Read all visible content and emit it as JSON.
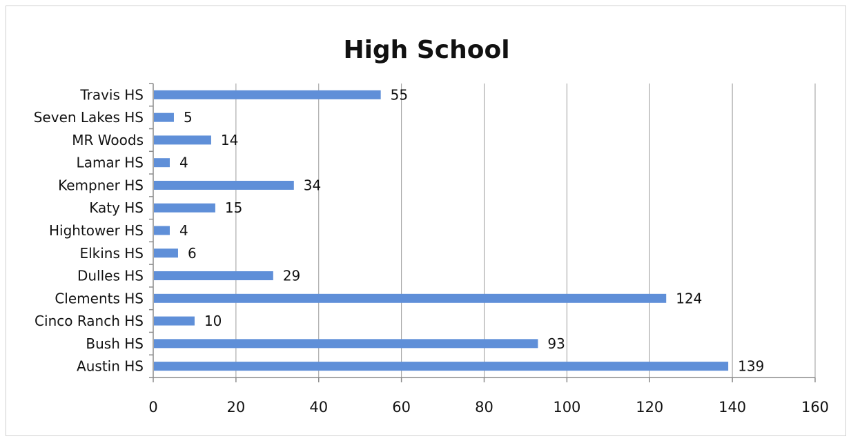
{
  "chart_data": {
    "type": "bar",
    "orientation": "horizontal",
    "title": "High School",
    "categories": [
      "Travis HS",
      "Seven Lakes HS",
      "MR Woods",
      "Lamar HS",
      "Kempner HS",
      "Katy HS",
      "Hightower HS",
      "Elkins HS",
      "Dulles HS",
      "Clements HS",
      "Cinco Ranch HS",
      "Bush HS",
      "Austin HS"
    ],
    "values": [
      55,
      5,
      14,
      4,
      34,
      15,
      4,
      6,
      29,
      124,
      10,
      93,
      139
    ],
    "xlim": [
      0,
      160
    ],
    "xticks": [
      "0",
      "20",
      "40",
      "60",
      "80",
      "100",
      "120",
      "140",
      "160"
    ],
    "grid": "vertical",
    "data_labels": true,
    "legend": "none",
    "bar_color": "#5f8fd8"
  }
}
